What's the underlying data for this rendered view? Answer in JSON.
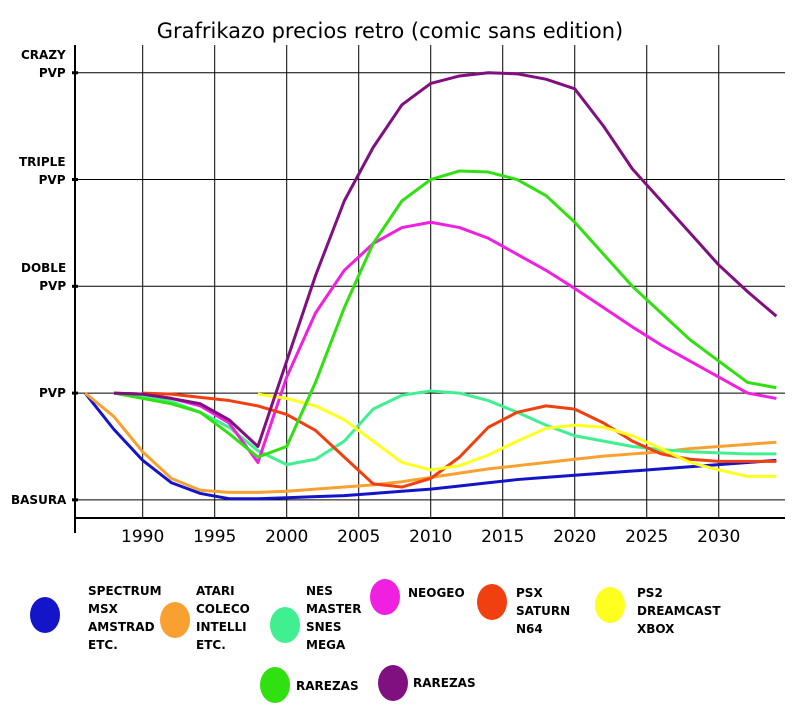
{
  "chart_data": {
    "type": "line",
    "title": "Grafrikazo precios retro (comic sans edition)",
    "x": [
      1986,
      1988,
      1990,
      1992,
      1994,
      1996,
      1998,
      2000,
      2002,
      2004,
      2006,
      2008,
      2010,
      2012,
      2014,
      2016,
      2018,
      2020,
      2022,
      2024,
      2026,
      2028,
      2030,
      2032,
      2034
    ],
    "xlim": [
      1985.3,
      2034.6
    ],
    "xticks": [
      1990,
      1995,
      2000,
      2005,
      2010,
      2015,
      2020,
      2025,
      2030
    ],
    "ylim": [
      -0.17,
      4.26
    ],
    "yticks": [
      {
        "value": 0,
        "label": "BASURA"
      },
      {
        "value": 1,
        "label": "PVP"
      },
      {
        "value": 2,
        "label": "DOBLE PVP"
      },
      {
        "value": 3,
        "label": "TRIPLE PVP"
      },
      {
        "value": 4,
        "label": "CRAZY PVP"
      }
    ],
    "grid": true,
    "series": [
      {
        "name": "SPECTRUM MSX AMSTRAD ETC.",
        "color": "#1414c8",
        "values": [
          1,
          0.66,
          0.37,
          0.16,
          0.06,
          0.01,
          0.01,
          0.02,
          0.03,
          0.04,
          0.06,
          0.08,
          0.1,
          0.13,
          0.16,
          0.19,
          0.21,
          0.23,
          0.25,
          0.27,
          0.29,
          0.31,
          0.33,
          0.35,
          0.37
        ]
      },
      {
        "name": "ATARI COLECO INTELLI ETC.",
        "color": "#f8a030",
        "values": [
          1,
          0.78,
          0.45,
          0.2,
          0.09,
          0.07,
          0.07,
          0.08,
          0.1,
          0.12,
          0.14,
          0.17,
          0.21,
          0.25,
          0.29,
          0.32,
          0.35,
          0.38,
          0.41,
          0.43,
          0.45,
          0.48,
          0.5,
          0.52,
          0.54
        ]
      },
      {
        "name": "NES MASTER SNES MEGA",
        "color": "#40f090",
        "values": [
          null,
          1,
          0.97,
          0.92,
          0.82,
          0.68,
          0.46,
          0.33,
          0.38,
          0.55,
          0.85,
          0.98,
          1.02,
          1,
          0.93,
          0.82,
          0.7,
          0.6,
          0.55,
          0.5,
          0.47,
          0.45,
          0.44,
          0.43,
          0.43
        ]
      },
      {
        "name": "NEOGEO",
        "color": "#f020e0",
        "values": [
          null,
          1,
          0.99,
          0.95,
          0.88,
          0.72,
          0.35,
          1.15,
          1.75,
          2.15,
          2.4,
          2.55,
          2.6,
          2.55,
          2.45,
          2.3,
          2.15,
          1.98,
          1.8,
          1.62,
          1.45,
          1.3,
          1.15,
          1,
          0.95
        ]
      },
      {
        "name": "PSX SATURN N64",
        "color": "#f04010",
        "values": [
          null,
          null,
          1,
          0.99,
          0.96,
          0.93,
          0.88,
          0.8,
          0.65,
          0.4,
          0.15,
          0.12,
          0.2,
          0.4,
          0.68,
          0.82,
          0.88,
          0.85,
          0.72,
          0.55,
          0.43,
          0.38,
          0.36,
          0.36,
          0.36
        ]
      },
      {
        "name": "PS2 DREAMCAST XBOX",
        "color": "#ffff20",
        "values": [
          null,
          null,
          null,
          null,
          null,
          null,
          0.99,
          0.95,
          0.88,
          0.75,
          0.55,
          0.35,
          0.28,
          0.32,
          0.42,
          0.55,
          0.67,
          0.7,
          0.68,
          0.6,
          0.48,
          0.35,
          0.28,
          0.22,
          0.22
        ]
      },
      {
        "name": "RAREZAS",
        "color": "#30e010",
        "values": [
          null,
          1,
          0.95,
          0.9,
          0.82,
          0.62,
          0.4,
          0.5,
          1.1,
          1.8,
          2.4,
          2.8,
          3,
          3.08,
          3.07,
          3,
          2.85,
          2.6,
          2.3,
          2,
          1.75,
          1.5,
          1.3,
          1.1,
          1.05
        ]
      },
      {
        "name": "RAREZAS",
        "color": "#801080",
        "values": [
          null,
          1,
          0.99,
          0.95,
          0.9,
          0.75,
          0.5,
          1.3,
          2.1,
          2.8,
          3.3,
          3.7,
          3.9,
          3.97,
          4,
          3.99,
          3.94,
          3.85,
          3.5,
          3.1,
          2.8,
          2.5,
          2.2,
          1.95,
          1.72
        ]
      }
    ]
  }
}
